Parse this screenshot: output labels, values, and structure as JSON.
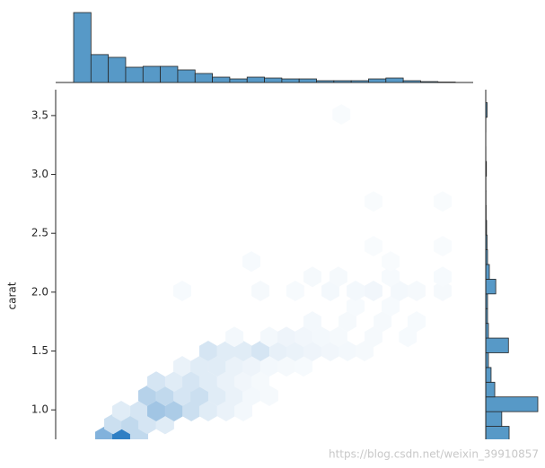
{
  "chart_data": {
    "type": "hexbin",
    "ylabel": "carat",
    "xlim": [
      -545,
      19690
    ],
    "ylim": [
      0.75,
      3.72
    ],
    "yticks": [
      {
        "value": 1,
        "label": "1.0"
      },
      1.5,
      {
        "value": 2,
        "label": "2.0"
      },
      2.5,
      {
        "value": 3,
        "label": "3.0"
      },
      3.5
    ],
    "hex_color": "#2f7fc4",
    "hexes": {
      "x": [
        1800,
        2630,
        3500,
        2240,
        3070,
        3890,
        4760,
        2630,
        3500,
        4330,
        5200,
        6030,
        6850,
        7720,
        8550,
        3890,
        4760,
        5590,
        6420,
        7290,
        8120,
        8940,
        9810,
        4330,
        5200,
        6030,
        6850,
        7720,
        8550,
        9380,
        5590,
        6420,
        7290,
        8120,
        8940,
        9810,
        10640,
        11470,
        6850,
        7720,
        8550,
        9380,
        10250,
        11070,
        11900,
        12770,
        13600,
        14430,
        8120,
        9810,
        10640,
        11470,
        12340,
        13160,
        14860,
        16520,
        11900,
        13600,
        15300,
        16950,
        13990,
        15690,
        5590,
        9380,
        11070,
        12770,
        13990,
        14860,
        16120,
        16950,
        18210,
        11900,
        13160,
        15690,
        18210,
        8940,
        15690,
        14860,
        18210,
        14860,
        18210,
        13300
      ],
      "y": [
        0.77,
        0.77,
        0.77,
        0.88,
        0.88,
        0.88,
        0.88,
        0.99,
        0.99,
        0.99,
        0.99,
        0.99,
        0.99,
        0.99,
        0.99,
        1.12,
        1.12,
        1.12,
        1.12,
        1.12,
        1.12,
        1.12,
        1.12,
        1.24,
        1.24,
        1.24,
        1.24,
        1.24,
        1.24,
        1.24,
        1.37,
        1.37,
        1.37,
        1.37,
        1.37,
        1.37,
        1.37,
        1.37,
        1.5,
        1.5,
        1.5,
        1.5,
        1.5,
        1.5,
        1.5,
        1.5,
        1.5,
        1.5,
        1.62,
        1.62,
        1.62,
        1.62,
        1.62,
        1.62,
        1.62,
        1.62,
        1.75,
        1.75,
        1.75,
        1.75,
        1.88,
        1.88,
        2.01,
        2.01,
        2.01,
        2.01,
        2.01,
        2.01,
        2.01,
        2.01,
        2.01,
        2.13,
        2.13,
        2.13,
        2.13,
        2.26,
        2.26,
        2.39,
        2.39,
        2.77,
        2.77,
        3.51
      ],
      "counts": [
        720,
        1200,
        360,
        300,
        360,
        240,
        180,
        180,
        240,
        540,
        480,
        300,
        180,
        120,
        70,
        420,
        360,
        240,
        300,
        180,
        120,
        70,
        60,
        240,
        180,
        240,
        180,
        120,
        80,
        60,
        120,
        180,
        180,
        120,
        100,
        70,
        60,
        50,
        240,
        180,
        180,
        240,
        140,
        120,
        100,
        80,
        70,
        60,
        70,
        70,
        100,
        80,
        70,
        60,
        60,
        50,
        70,
        60,
        60,
        50,
        50,
        50,
        50,
        60,
        50,
        70,
        70,
        80,
        70,
        60,
        60,
        60,
        60,
        50,
        50,
        50,
        40,
        40,
        40,
        40,
        40,
        40
      ]
    },
    "top_hist": {
      "color": "#5799c7",
      "bins": [
        326,
        1167,
        2008,
        2848,
        3689,
        4530,
        5371,
        6212,
        7052,
        7893,
        8734,
        9575,
        10416,
        11256,
        12097,
        12938,
        13779,
        14620,
        15460,
        16301,
        17142,
        17983,
        18823
      ],
      "counts": [
        9400,
        3750,
        3380,
        2050,
        2170,
        2170,
        1690,
        1210,
        720,
        480,
        720,
        600,
        480,
        480,
        240,
        240,
        240,
        480,
        600,
        240,
        120,
        60
      ]
    },
    "right_hist": {
      "color": "#5799c7",
      "bins": [
        0.735,
        0.86,
        0.985,
        1.11,
        1.235,
        1.36,
        1.485,
        1.61,
        1.735,
        1.86,
        1.985,
        2.11,
        2.235,
        2.36,
        2.485,
        2.61,
        2.735,
        2.86,
        2.985,
        3.11,
        3.235,
        3.36,
        3.485,
        3.61
      ],
      "counts": [
        3500,
        2400,
        7800,
        1350,
        800,
        400,
        3400,
        400,
        270,
        270,
        1500,
        540,
        270,
        200,
        130,
        60,
        40,
        30,
        100,
        20,
        10,
        20,
        200
      ]
    }
  },
  "watermark": "https://blog.csdn.net/weixin_39910857"
}
